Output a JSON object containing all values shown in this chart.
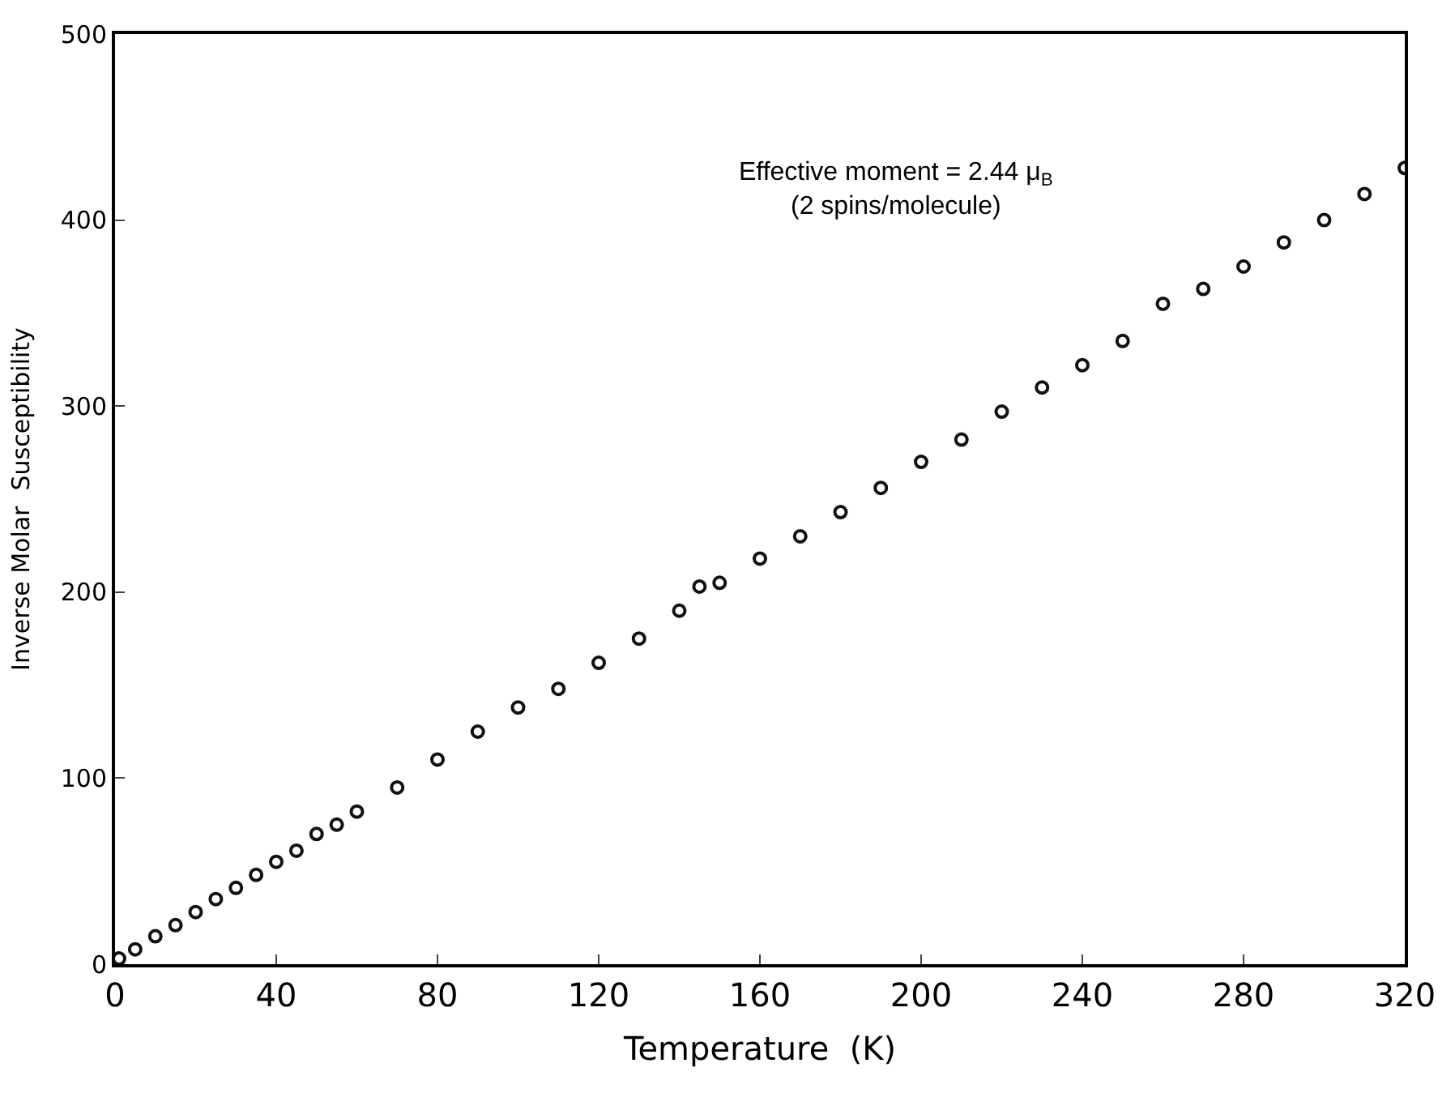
{
  "chart_data": {
    "type": "scatter",
    "xlabel": "Temperature  (K)",
    "ylabel": "Inverse Molar  Susceptibility",
    "x": [
      1,
      5,
      10,
      15,
      20,
      25,
      30,
      35,
      40,
      45,
      50,
      55,
      60,
      70,
      80,
      90,
      100,
      110,
      120,
      130,
      140,
      145,
      150,
      160,
      170,
      180,
      190,
      200,
      210,
      220,
      230,
      240,
      250,
      260,
      270,
      280,
      290,
      300,
      310,
      320
    ],
    "series": [
      {
        "color": "#111111",
        "values": [
          3,
          8,
          15,
          21,
          28,
          35,
          41,
          48,
          55,
          61,
          70,
          75,
          82,
          95,
          110,
          125,
          138,
          148,
          162,
          175,
          190,
          203,
          205,
          218,
          230,
          243,
          256,
          270,
          282,
          297,
          310,
          322,
          335,
          355,
          363,
          375,
          388,
          400,
          414,
          428
        ]
      }
    ],
    "xlim": [
      0,
      320
    ],
    "ylim": [
      0,
      500
    ],
    "xticks": [
      0,
      40,
      80,
      120,
      160,
      200,
      240,
      280,
      320
    ],
    "yticks": [
      0,
      100,
      200,
      300,
      400,
      500
    ],
    "marker": "circle",
    "annotations": [
      "Effective moment = 2.44 μ$_{B}$\n(2 spins/molecule)"
    ]
  }
}
